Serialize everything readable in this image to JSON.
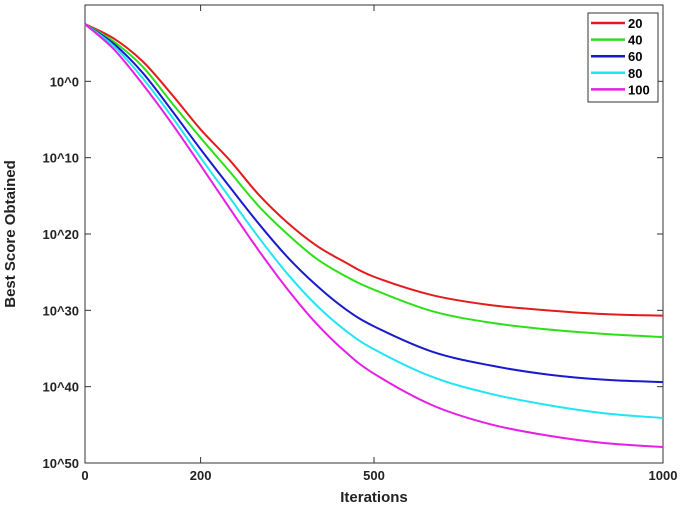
{
  "chart_data": {
    "type": "line",
    "xlabel": "Iterations",
    "ylabel": "Best Score Obtained",
    "x_ticks": [
      {
        "value": 0,
        "label": "0"
      },
      {
        "value": 200,
        "label": "200"
      },
      {
        "value": 500,
        "label": "500"
      },
      {
        "value": 1000,
        "label": "1000"
      }
    ],
    "y_ticks": [
      {
        "value": 0,
        "label": "10^0"
      },
      {
        "value": -10,
        "label": "10^10"
      },
      {
        "value": -20,
        "label": "10^20"
      },
      {
        "value": -30,
        "label": "10^30"
      },
      {
        "value": -40,
        "label": "10^40"
      },
      {
        "value": -50,
        "label": "10^50"
      }
    ],
    "xlim": [
      0,
      1000
    ],
    "ylim": [
      -50,
      10
    ],
    "y_scale": "log",
    "grid": false,
    "legend_position": "top-right",
    "series": [
      {
        "name": "20",
        "color": "#e41a1c",
        "points": [
          [
            0,
            7.5
          ],
          [
            50,
            5.6
          ],
          [
            100,
            2.6
          ],
          [
            150,
            -1.7
          ],
          [
            200,
            -6.3
          ],
          [
            250,
            -10.3
          ],
          [
            300,
            -14.8
          ],
          [
            350,
            -18.5
          ],
          [
            400,
            -21.5
          ],
          [
            450,
            -23.7
          ],
          [
            500,
            -25.6
          ],
          [
            600,
            -28.0
          ],
          [
            700,
            -29.3
          ],
          [
            800,
            -30.0
          ],
          [
            900,
            -30.5
          ],
          [
            1000,
            -30.7
          ]
        ]
      },
      {
        "name": "40",
        "color": "#2ce017",
        "points": [
          [
            0,
            7.5
          ],
          [
            50,
            5.2
          ],
          [
            100,
            1.9
          ],
          [
            150,
            -2.8
          ],
          [
            200,
            -7.4
          ],
          [
            250,
            -11.8
          ],
          [
            300,
            -16.3
          ],
          [
            350,
            -20.0
          ],
          [
            400,
            -23.2
          ],
          [
            450,
            -25.5
          ],
          [
            500,
            -27.3
          ],
          [
            600,
            -30.1
          ],
          [
            700,
            -31.6
          ],
          [
            800,
            -32.5
          ],
          [
            900,
            -33.1
          ],
          [
            1000,
            -33.5
          ]
        ]
      },
      {
        "name": "60",
        "color": "#1a1acd",
        "points": [
          [
            0,
            7.5
          ],
          [
            50,
            4.9
          ],
          [
            100,
            1.1
          ],
          [
            150,
            -3.8
          ],
          [
            200,
            -8.9
          ],
          [
            250,
            -13.8
          ],
          [
            300,
            -18.6
          ],
          [
            350,
            -23.0
          ],
          [
            400,
            -26.7
          ],
          [
            450,
            -29.8
          ],
          [
            500,
            -32.1
          ],
          [
            600,
            -35.4
          ],
          [
            700,
            -37.2
          ],
          [
            800,
            -38.4
          ],
          [
            900,
            -39.1
          ],
          [
            1000,
            -39.4
          ]
        ]
      },
      {
        "name": "80",
        "color": "#1ee6f2",
        "points": [
          [
            0,
            7.5
          ],
          [
            50,
            4.6
          ],
          [
            100,
            0.4
          ],
          [
            150,
            -4.6
          ],
          [
            200,
            -10.0
          ],
          [
            250,
            -15.2
          ],
          [
            300,
            -20.4
          ],
          [
            350,
            -25.2
          ],
          [
            400,
            -29.3
          ],
          [
            450,
            -32.6
          ],
          [
            500,
            -35.1
          ],
          [
            600,
            -38.7
          ],
          [
            700,
            -40.9
          ],
          [
            800,
            -42.4
          ],
          [
            900,
            -43.5
          ],
          [
            1000,
            -44.1
          ]
        ]
      },
      {
        "name": "100",
        "color": "#e61ee6",
        "points": [
          [
            0,
            7.5
          ],
          [
            50,
            4.2
          ],
          [
            100,
            -0.4
          ],
          [
            150,
            -5.5
          ],
          [
            200,
            -11.0
          ],
          [
            250,
            -16.6
          ],
          [
            300,
            -22.1
          ],
          [
            350,
            -27.2
          ],
          [
            400,
            -31.7
          ],
          [
            450,
            -35.4
          ],
          [
            500,
            -38.3
          ],
          [
            600,
            -42.4
          ],
          [
            700,
            -44.9
          ],
          [
            800,
            -46.4
          ],
          [
            900,
            -47.4
          ],
          [
            1000,
            -47.9
          ]
        ]
      }
    ]
  }
}
